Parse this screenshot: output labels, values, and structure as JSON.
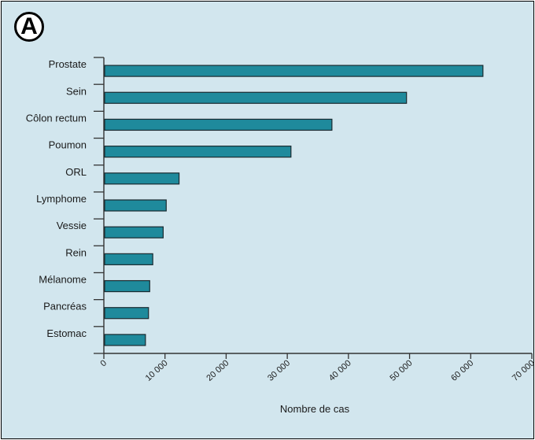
{
  "panel_label": "A",
  "chart_data": {
    "type": "bar",
    "orientation": "horizontal",
    "title": "",
    "xlabel": "Nombre de cas",
    "ylabel": "",
    "categories": [
      "Prostate",
      "Sein",
      "Côlon rectum",
      "Poumon",
      "ORL",
      "Lymphome",
      "Vessie",
      "Rein",
      "Mélanome",
      "Pancréas",
      "Estomac"
    ],
    "values": [
      62000,
      49500,
      37300,
      30600,
      12300,
      10200,
      9700,
      8000,
      7500,
      7300,
      6800
    ],
    "xlim": [
      0,
      70000
    ],
    "xticks": [
      0,
      10000,
      20000,
      30000,
      40000,
      50000,
      60000,
      70000
    ],
    "xtick_labels": [
      "0",
      "10 000",
      "20 000",
      "30 000",
      "40 000",
      "50 000",
      "60 000",
      "70 000"
    ],
    "grid": false,
    "bar_color": "#1f8a9c",
    "bar_outline": "#1a2a30"
  }
}
